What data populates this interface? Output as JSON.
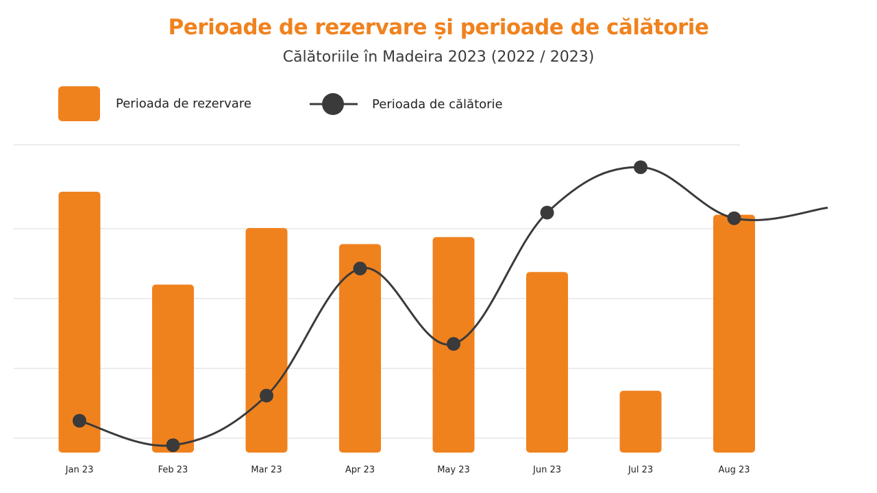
{
  "title": "Perioade de rezervare și perioade de călătorie",
  "subtitle": "Călătoriile în Madeira 2023 (2022 / 2023)",
  "legend": {
    "bars_label": "Perioada de rezervare",
    "line_label": "Perioada de călătorie"
  },
  "colors": {
    "accent": "#f0821e",
    "line": "#3a3a3a",
    "grid": "#d9d9d9"
  },
  "chart_data": {
    "type": "bar",
    "categories": [
      "Jan 23",
      "Feb 23",
      "Mar 23",
      "Apr 23",
      "May 23",
      "Jun 23",
      "Jul 23",
      "Aug 23"
    ],
    "series": [
      {
        "name": "Perioada de rezervare",
        "type": "bar",
        "values": [
          3.53,
          2.2,
          3.01,
          2.78,
          2.88,
          2.38,
          0.68,
          3.2
        ]
      },
      {
        "name": "Perioada de călătorie",
        "type": "line",
        "values": [
          0.25,
          -0.1,
          0.61,
          2.43,
          1.35,
          3.23,
          3.88,
          3.15
        ]
      }
    ],
    "ylim": [
      0,
      4.2
    ],
    "gridlines": [
      0,
      1,
      2,
      3,
      4.2
    ],
    "grid": true,
    "legend_position": "top-left",
    "xlabel": "",
    "ylabel": ""
  }
}
